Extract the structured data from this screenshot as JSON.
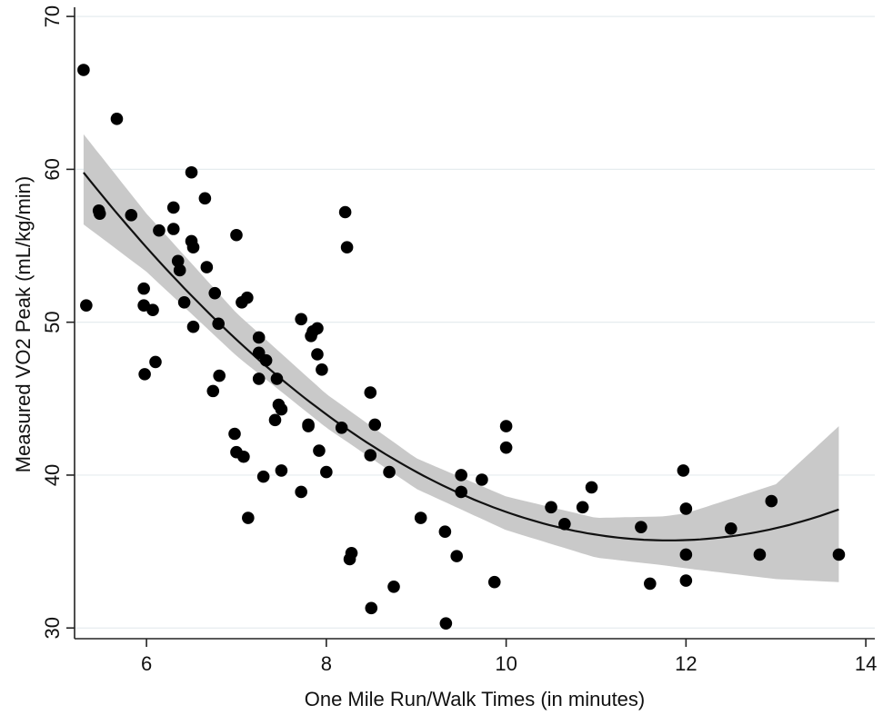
{
  "chart_data": {
    "type": "scatter",
    "xlabel": "One Mile Run/Walk Times (in minutes)",
    "ylabel": "Measured VO2 Peak (mL/kg/min)",
    "xlim": [
      5.2,
      14.1
    ],
    "ylim": [
      29.3,
      70.6
    ],
    "x_ticks": [
      6,
      8,
      10,
      12,
      14
    ],
    "y_ticks": [
      30,
      40,
      50,
      60,
      70
    ],
    "grid": true,
    "legend": "none",
    "point_color": "#000000",
    "fit_color": "#111111",
    "band_color": "#c9c9c9",
    "points": [
      [
        5.3,
        66.5
      ],
      [
        5.33,
        51.1
      ],
      [
        5.47,
        57.3
      ],
      [
        5.48,
        57.1
      ],
      [
        5.67,
        63.3
      ],
      [
        5.83,
        57.0
      ],
      [
        5.97,
        52.2
      ],
      [
        5.97,
        51.1
      ],
      [
        5.98,
        46.6
      ],
      [
        6.07,
        50.8
      ],
      [
        6.1,
        47.4
      ],
      [
        6.14,
        56.0
      ],
      [
        6.3,
        57.5
      ],
      [
        6.3,
        56.1
      ],
      [
        6.35,
        54.0
      ],
      [
        6.37,
        53.4
      ],
      [
        6.42,
        51.3
      ],
      [
        6.5,
        59.8
      ],
      [
        6.5,
        55.3
      ],
      [
        6.52,
        54.9
      ],
      [
        6.52,
        49.7
      ],
      [
        6.65,
        58.1
      ],
      [
        6.67,
        53.6
      ],
      [
        6.74,
        45.5
      ],
      [
        6.76,
        51.9
      ],
      [
        6.8,
        49.9
      ],
      [
        6.81,
        46.5
      ],
      [
        6.98,
        42.7
      ],
      [
        7.0,
        55.7
      ],
      [
        7.0,
        41.5
      ],
      [
        7.06,
        51.3
      ],
      [
        7.08,
        41.2
      ],
      [
        7.12,
        51.6
      ],
      [
        7.13,
        37.2
      ],
      [
        7.25,
        48.0
      ],
      [
        7.25,
        49.0
      ],
      [
        7.25,
        46.3
      ],
      [
        7.3,
        39.9
      ],
      [
        7.33,
        47.5
      ],
      [
        7.43,
        43.6
      ],
      [
        7.45,
        46.3
      ],
      [
        7.47,
        44.6
      ],
      [
        7.5,
        44.3
      ],
      [
        7.5,
        40.3
      ],
      [
        7.72,
        50.2
      ],
      [
        7.72,
        38.9
      ],
      [
        7.8,
        43.3
      ],
      [
        7.8,
        43.2
      ],
      [
        7.83,
        49.1
      ],
      [
        7.85,
        49.4
      ],
      [
        7.9,
        49.6
      ],
      [
        7.9,
        47.9
      ],
      [
        7.92,
        41.6
      ],
      [
        7.95,
        46.9
      ],
      [
        8.0,
        40.2
      ],
      [
        8.17,
        43.1
      ],
      [
        8.21,
        57.2
      ],
      [
        8.23,
        54.9
      ],
      [
        8.26,
        34.5
      ],
      [
        8.28,
        34.9
      ],
      [
        8.49,
        45.4
      ],
      [
        8.49,
        41.3
      ],
      [
        8.5,
        31.3
      ],
      [
        8.54,
        43.3
      ],
      [
        8.7,
        40.2
      ],
      [
        8.75,
        32.7
      ],
      [
        9.05,
        37.2
      ],
      [
        9.32,
        36.3
      ],
      [
        9.33,
        30.3
      ],
      [
        9.45,
        34.7
      ],
      [
        9.5,
        40.0
      ],
      [
        9.5,
        38.9
      ],
      [
        9.73,
        39.7
      ],
      [
        9.87,
        33.0
      ],
      [
        10.0,
        43.2
      ],
      [
        10.0,
        41.8
      ],
      [
        10.5,
        37.9
      ],
      [
        10.65,
        36.8
      ],
      [
        10.85,
        37.9
      ],
      [
        10.95,
        39.2
      ],
      [
        11.5,
        36.6
      ],
      [
        11.6,
        32.9
      ],
      [
        11.97,
        40.3
      ],
      [
        12.0,
        37.8
      ],
      [
        12.0,
        34.8
      ],
      [
        12.0,
        33.1
      ],
      [
        12.5,
        36.5
      ],
      [
        12.82,
        34.8
      ],
      [
        12.95,
        38.3
      ],
      [
        13.7,
        34.8
      ]
    ],
    "fit_curve": {
      "type": "quadratic",
      "x_range": [
        5.3,
        13.7
      ],
      "x": [
        5.3,
        6.0,
        7.0,
        8.0,
        9.0,
        10.0,
        11.0,
        11.75,
        12.0,
        13.0,
        13.7
      ],
      "y": [
        59.3,
        55.2,
        49.2,
        44.2,
        40.1,
        37.5,
        35.9,
        35.7,
        35.7,
        36.3,
        38.1
      ],
      "lower": [
        56.4,
        53.3,
        47.8,
        43.1,
        39.1,
        36.4,
        34.6,
        34.1,
        33.9,
        33.2,
        33.0
      ],
      "upper": [
        62.3,
        57.1,
        50.6,
        45.3,
        41.1,
        38.6,
        37.2,
        37.3,
        37.5,
        39.4,
        43.2
      ]
    }
  }
}
